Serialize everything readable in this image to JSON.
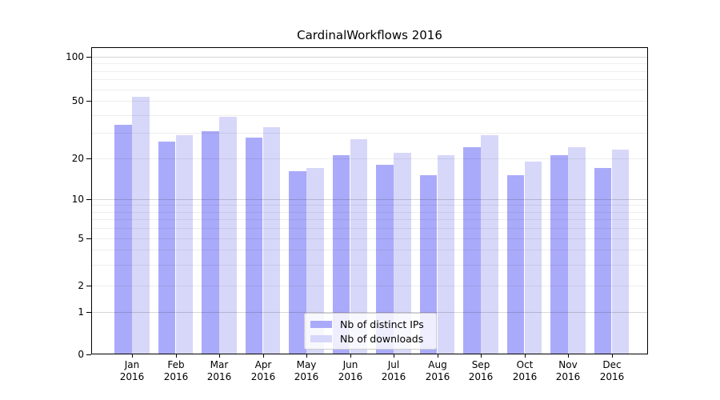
{
  "page": {
    "background": "#ffffff"
  },
  "chart_data": {
    "type": "bar",
    "title": "CardinalWorkflows 2016",
    "categories": [
      "Jan 2016",
      "Feb 2016",
      "Mar 2016",
      "Apr 2016",
      "May 2016",
      "Jun 2016",
      "Jul 2016",
      "Aug 2016",
      "Sep 2016",
      "Oct 2016",
      "Nov 2016",
      "Dec 2016"
    ],
    "series": [
      {
        "name": "Nb of distinct IPs",
        "color": "#aaaafa",
        "values": [
          34,
          26,
          31,
          28,
          16,
          21,
          18,
          15,
          24,
          15,
          21,
          17
        ]
      },
      {
        "name": "Nb of downloads",
        "color": "#d7d7fa",
        "values": [
          53,
          29,
          39,
          33,
          17,
          27,
          22,
          21,
          29,
          19,
          24,
          23
        ]
      }
    ],
    "xlabel": "",
    "ylabel": "",
    "yscale": "symlog",
    "ylim": [
      0,
      116
    ],
    "yticks": [
      0,
      1,
      2,
      5,
      10,
      20,
      50,
      100
    ],
    "grid": true,
    "legend_position": "lower-center"
  },
  "colors": {
    "bar_ips": "#aaaafa",
    "bar_downloads": "#d7d7fa",
    "grid_major": "#d6d6d6",
    "grid_minor": "#eeeeee",
    "axis": "#000000",
    "text": "#000000",
    "legend_border": "#cccccc"
  }
}
